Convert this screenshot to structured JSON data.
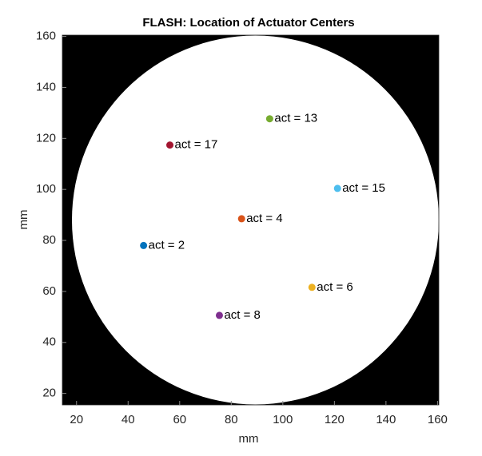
{
  "chart_data": {
    "type": "scatter",
    "title": "FLASH: Location of Actuator Centers",
    "xlabel": "mm",
    "ylabel": "mm",
    "xlim": [
      14.5,
      160.5
    ],
    "ylim": [
      15.5,
      160.5
    ],
    "xticks": [
      20,
      40,
      60,
      80,
      100,
      120,
      140,
      160
    ],
    "yticks": [
      20,
      40,
      60,
      80,
      100,
      120,
      140,
      160
    ],
    "series": [
      {
        "name": "act = 2",
        "color": "#0072BD",
        "x": [
          46
        ],
        "values": [
          78
        ]
      },
      {
        "name": "act = 4",
        "color": "#D95319",
        "x": [
          84
        ],
        "values": [
          88.5
        ]
      },
      {
        "name": "act = 6",
        "color": "#EDB120",
        "x": [
          111.3
        ],
        "values": [
          61.6
        ]
      },
      {
        "name": "act = 8",
        "color": "#7E2F8E",
        "x": [
          75.4
        ],
        "values": [
          50.6
        ]
      },
      {
        "name": "act = 13",
        "color": "#77AC30",
        "x": [
          94.9
        ],
        "values": [
          127.7
        ]
      },
      {
        "name": "act = 15",
        "color": "#4DBEEE",
        "x": [
          121.2
        ],
        "values": [
          100.4
        ]
      },
      {
        "name": "act = 17",
        "color": "#A2142F",
        "x": [
          56.2
        ],
        "values": [
          117.4
        ]
      }
    ]
  }
}
